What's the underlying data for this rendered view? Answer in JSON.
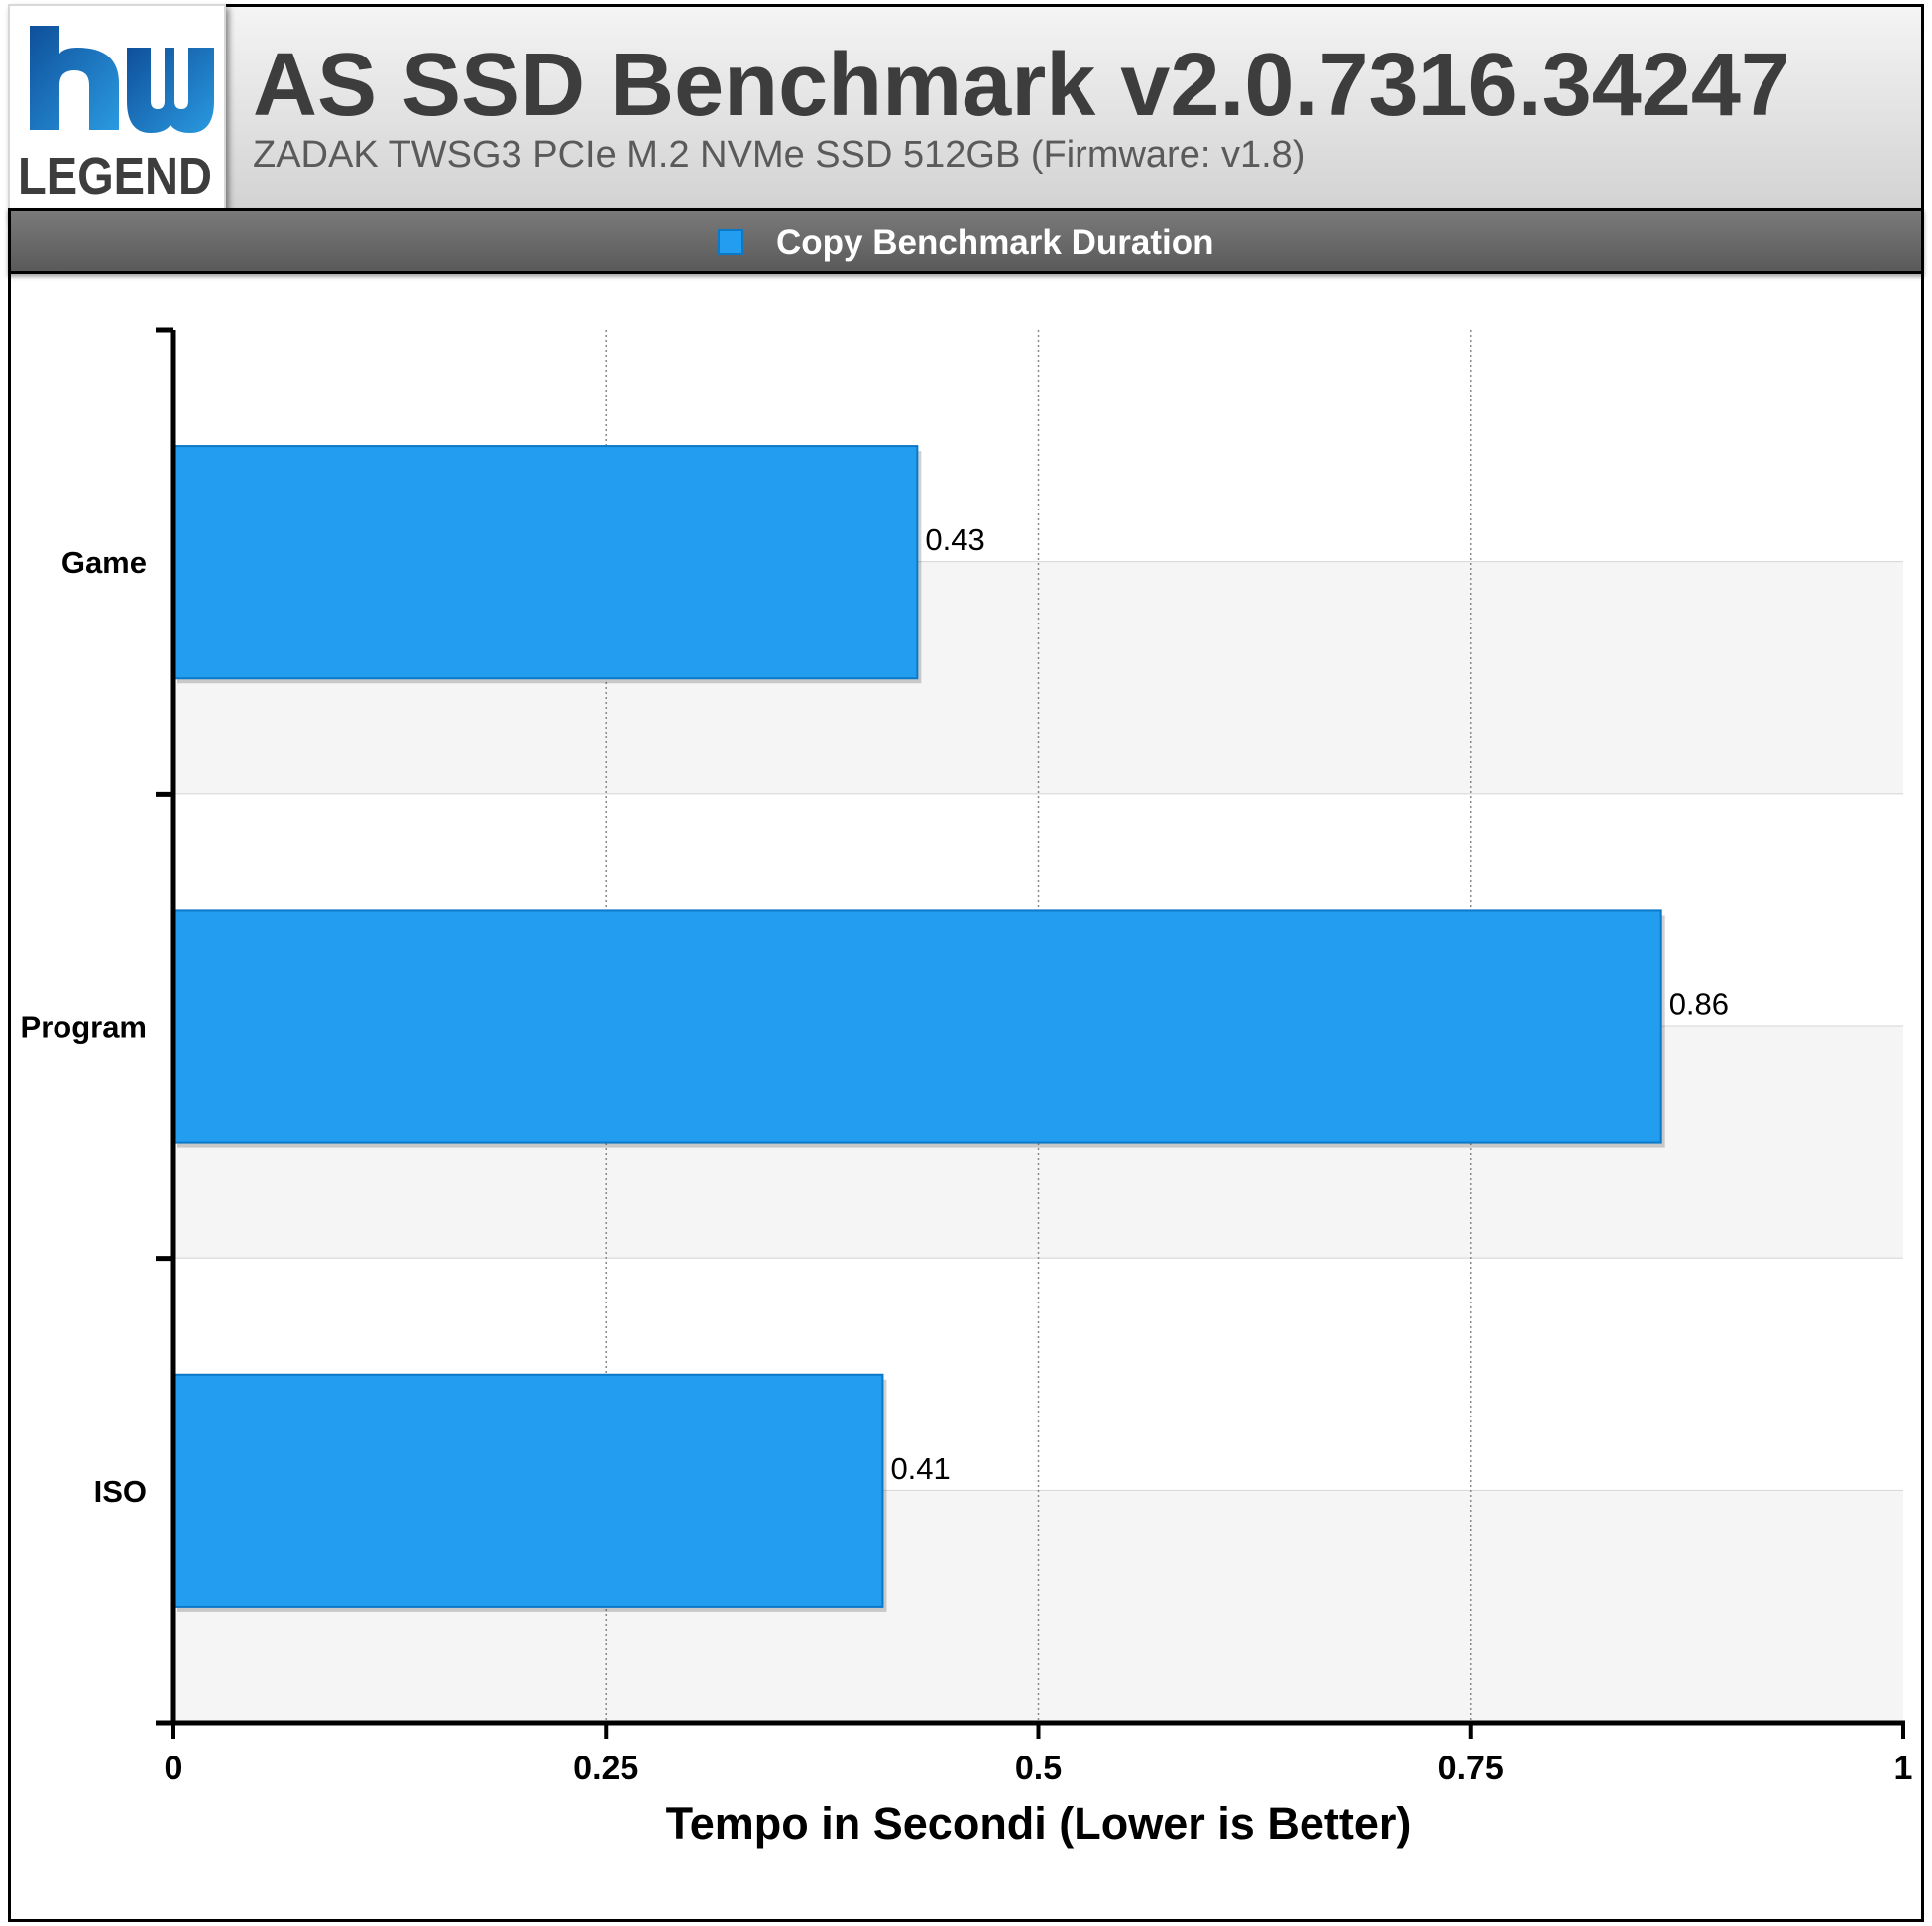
{
  "header": {
    "logo_text": "LEGEND",
    "title": "AS SSD Benchmark v2.0.7316.34247",
    "subtitle": "ZADAK TWSG3 PCIe M.2 NVMe SSD 512GB (Firmware: v1.8)"
  },
  "colors": {
    "bar": "#229df0",
    "bar_border": "#0b78c8",
    "logo_blue": "#1a6fc0"
  },
  "chart_data": {
    "type": "bar",
    "orientation": "horizontal",
    "categories": [
      "Game",
      "Program",
      "ISO"
    ],
    "series": [
      {
        "name": "Copy Benchmark Duration",
        "values": [
          0.43,
          0.86,
          0.41
        ]
      }
    ],
    "value_labels": [
      "0.43",
      "0.86",
      "0.41"
    ],
    "xlabel": "Tempo in Secondi (Lower is Better)",
    "xlim": [
      0,
      1
    ],
    "xticks": [
      0,
      0.25,
      0.5,
      0.75,
      1
    ],
    "xtick_labels": [
      "0",
      "0.25",
      "0.5",
      "0.75",
      "1"
    ],
    "grid": true,
    "legend_position": "top-center"
  }
}
